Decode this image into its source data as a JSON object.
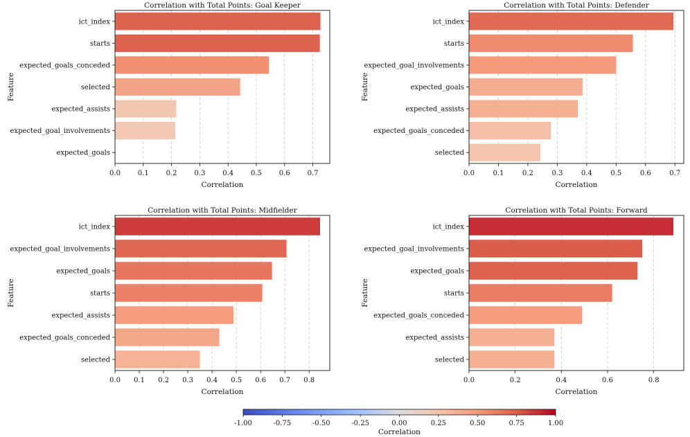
{
  "chart_data": [
    {
      "type": "bar",
      "orientation": "horizontal",
      "title": "Correlation with Total Points: Goal Keeper",
      "xlabel": "Correlation",
      "ylabel": "Feature",
      "xlim": [
        0,
        0.76
      ],
      "xticks": [
        0,
        0.1,
        0.2,
        0.3,
        0.4,
        0.5,
        0.6,
        0.7
      ],
      "xtick_labels": [
        "0.0",
        "0.1",
        "0.2",
        "0.3",
        "0.4",
        "0.5",
        "0.6",
        "0.7"
      ],
      "grid": "x-dashed",
      "categories": [
        "ict_index",
        "starts",
        "expected_goals_conceded",
        "selected",
        "expected_assists",
        "expected_goal_involvements",
        "expected_goals"
      ],
      "values": [
        0.727,
        0.725,
        0.545,
        0.443,
        0.217,
        0.213,
        0.0
      ]
    },
    {
      "type": "bar",
      "orientation": "horizontal",
      "title": "Correlation with Total Points: Defender",
      "xlabel": "Correlation",
      "ylabel": "Feature",
      "xlim": [
        0,
        0.73
      ],
      "xticks": [
        0,
        0.1,
        0.2,
        0.3,
        0.4,
        0.5,
        0.6,
        0.7
      ],
      "xtick_labels": [
        "0.0",
        "0.1",
        "0.2",
        "0.3",
        "0.4",
        "0.5",
        "0.6",
        "0.7"
      ],
      "grid": "x-dashed",
      "categories": [
        "ict_index",
        "starts",
        "expected_goal_involvements",
        "expected_goals",
        "expected_assists",
        "expected_goals_conceded",
        "selected"
      ],
      "values": [
        0.695,
        0.557,
        0.5,
        0.386,
        0.37,
        0.278,
        0.243
      ]
    },
    {
      "type": "bar",
      "orientation": "horizontal",
      "title": "Correlation with Total Points: Midfielder",
      "xlabel": "Correlation",
      "ylabel": "Feature",
      "xlim": [
        0,
        0.885
      ],
      "xticks": [
        0,
        0.1,
        0.2,
        0.3,
        0.4,
        0.5,
        0.6,
        0.7,
        0.8
      ],
      "xtick_labels": [
        "0.0",
        "0.1",
        "0.2",
        "0.3",
        "0.4",
        "0.5",
        "0.6",
        "0.7",
        "0.8"
      ],
      "grid": "x-dashed",
      "categories": [
        "ict_index",
        "expected_goal_involvements",
        "expected_goals",
        "starts",
        "expected_assists",
        "expected_goals_conceded",
        "selected"
      ],
      "values": [
        0.845,
        0.707,
        0.647,
        0.607,
        0.488,
        0.43,
        0.35
      ]
    },
    {
      "type": "bar",
      "orientation": "horizontal",
      "title": "Correlation with Total Points: Forward",
      "xlabel": "Correlation",
      "ylabel": "Feature",
      "xlim": [
        0,
        0.93
      ],
      "xticks": [
        0,
        0.2,
        0.4,
        0.6,
        0.8
      ],
      "xtick_labels": [
        "0.0",
        "0.2",
        "0.4",
        "0.6",
        "0.8"
      ],
      "grid": "x-dashed",
      "categories": [
        "ict_index",
        "expected_goal_involvements",
        "expected_goals",
        "starts",
        "expected_goals_conceded",
        "expected_assists",
        "selected"
      ],
      "values": [
        0.885,
        0.75,
        0.73,
        0.62,
        0.49,
        0.37,
        0.37
      ]
    }
  ],
  "colorbar": {
    "label": "Correlation",
    "colormap": "coolwarm",
    "range": [
      -1,
      1
    ],
    "ticks": [
      -1,
      -0.75,
      -0.5,
      -0.25,
      0,
      0.25,
      0.5,
      0.75,
      1
    ],
    "tick_labels": [
      "-1.00",
      "-0.75",
      "-0.50",
      "-0.25",
      "0.00",
      "0.25",
      "0.50",
      "0.75",
      "1.00"
    ]
  },
  "colors": {
    "zero": "#dddcdc",
    "mid": "#f7b89c",
    "high": "#b40426",
    "cold": "#3b4cc0"
  }
}
